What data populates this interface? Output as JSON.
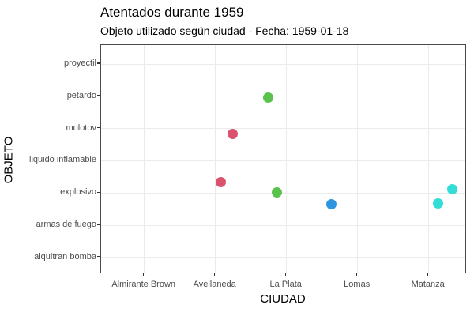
{
  "chart_data": {
    "type": "scatter",
    "title": "Atentados durante 1959",
    "subtitle": "Objeto utilizado según ciudad - Fecha: 1959-01-18",
    "xlabel": "CIUDAD",
    "ylabel": "OBJETO",
    "x_categories": [
      "Almirante Brown",
      "Avellaneda",
      "La Plata",
      "Lomas",
      "Matanza"
    ],
    "y_categories": [
      "proyectil",
      "petardo",
      "molotov",
      "liquido inflamable",
      "explosivo",
      "armas de fuego",
      "alquitran bomba"
    ],
    "grid": true,
    "legend": false,
    "city_colors": {
      "Avellaneda": "#d9536e",
      "La Plata": "#5ac24d",
      "Lomas": "#2e96e0",
      "Matanza": "#31ddd6"
    },
    "points": [
      {
        "ciudad": "La Plata",
        "objeto": "petardo",
        "jx": -23,
        "jy": 2
      },
      {
        "ciudad": "Avellaneda",
        "objeto": "molotov",
        "jx": 22,
        "jy": 7
      },
      {
        "ciudad": "Avellaneda",
        "objeto": "explosivo",
        "jx": 7,
        "jy": -14
      },
      {
        "ciudad": "La Plata",
        "objeto": "explosivo",
        "jx": -12,
        "jy": -1
      },
      {
        "ciudad": "Lomas",
        "objeto": "explosivo",
        "jx": -33,
        "jy": 14
      },
      {
        "ciudad": "Matanza",
        "objeto": "explosivo",
        "jx": 12,
        "jy": 13
      },
      {
        "ciudad": "Matanza",
        "objeto": "explosivo",
        "jx": 30,
        "jy": -5
      }
    ],
    "style": {
      "grid_color": "#ebebeb",
      "panel_border_color": "#4a4a4a",
      "tick_label_color": "#4d4d4d",
      "text_color": "#000000",
      "background": "#ffffff"
    }
  }
}
